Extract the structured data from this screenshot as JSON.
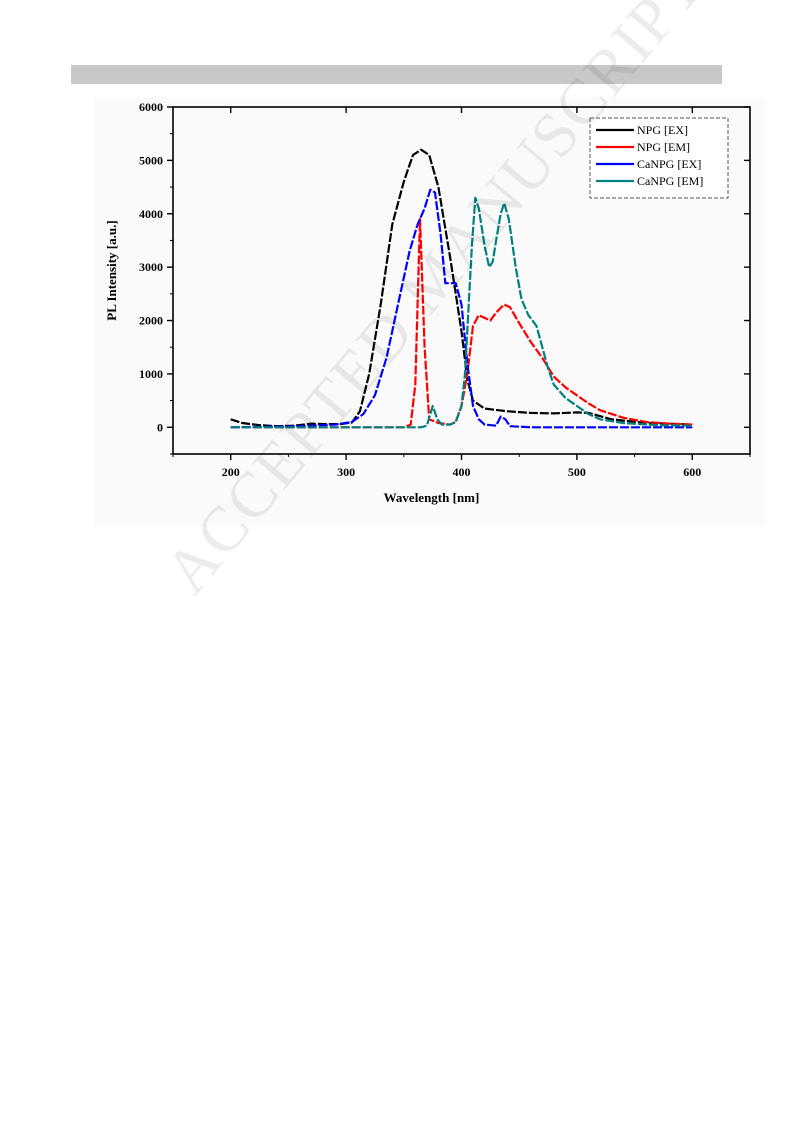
{
  "watermark": "ACCEPTED MANUSCRIPT",
  "chart_data": {
    "type": "line",
    "title": "",
    "xlabel": "Wavelength [nm]",
    "ylabel": "PL Intensity [a.u.]",
    "xlim": [
      150,
      650
    ],
    "ylim": [
      -500,
      6000
    ],
    "xticks": [
      200,
      300,
      400,
      500,
      600
    ],
    "yticks": [
      0,
      1000,
      2000,
      3000,
      4000,
      5000,
      6000
    ],
    "grid": false,
    "legend_position": "top-right",
    "series": [
      {
        "name": "NPG [EX]",
        "color": "#000000",
        "points": [
          [
            200,
            150
          ],
          [
            210,
            80
          ],
          [
            225,
            40
          ],
          [
            240,
            20
          ],
          [
            255,
            30
          ],
          [
            270,
            70
          ],
          [
            280,
            60
          ],
          [
            295,
            60
          ],
          [
            305,
            90
          ],
          [
            312,
            300
          ],
          [
            320,
            1000
          ],
          [
            330,
            2300
          ],
          [
            340,
            3800
          ],
          [
            350,
            4600
          ],
          [
            358,
            5100
          ],
          [
            365,
            5200
          ],
          [
            372,
            5100
          ],
          [
            380,
            4500
          ],
          [
            390,
            3200
          ],
          [
            400,
            1800
          ],
          [
            405,
            900
          ],
          [
            410,
            500
          ],
          [
            420,
            350
          ],
          [
            440,
            300
          ],
          [
            460,
            270
          ],
          [
            480,
            260
          ],
          [
            500,
            280
          ],
          [
            510,
            270
          ],
          [
            530,
            150
          ],
          [
            560,
            80
          ],
          [
            600,
            50
          ]
        ]
      },
      {
        "name": "NPG [EM]",
        "color": "#ff0000",
        "points": [
          [
            200,
            0
          ],
          [
            350,
            0
          ],
          [
            356,
            50
          ],
          [
            360,
            800
          ],
          [
            364,
            3900
          ],
          [
            368,
            1500
          ],
          [
            372,
            150
          ],
          [
            380,
            80
          ],
          [
            390,
            50
          ],
          [
            395,
            100
          ],
          [
            400,
            400
          ],
          [
            405,
            1000
          ],
          [
            410,
            1900
          ],
          [
            415,
            2100
          ],
          [
            420,
            2050
          ],
          [
            425,
            2000
          ],
          [
            430,
            2150
          ],
          [
            437,
            2300
          ],
          [
            442,
            2250
          ],
          [
            450,
            1950
          ],
          [
            460,
            1600
          ],
          [
            470,
            1300
          ],
          [
            480,
            950
          ],
          [
            490,
            750
          ],
          [
            500,
            600
          ],
          [
            510,
            450
          ],
          [
            520,
            320
          ],
          [
            540,
            180
          ],
          [
            560,
            100
          ],
          [
            580,
            70
          ],
          [
            600,
            50
          ]
        ]
      },
      {
        "name": "CaNPG [EX]",
        "color": "#0000ff",
        "points": [
          [
            200,
            0
          ],
          [
            230,
            10
          ],
          [
            260,
            20
          ],
          [
            290,
            50
          ],
          [
            305,
            100
          ],
          [
            315,
            250
          ],
          [
            325,
            600
          ],
          [
            335,
            1300
          ],
          [
            345,
            2300
          ],
          [
            355,
            3300
          ],
          [
            362,
            3800
          ],
          [
            368,
            4100
          ],
          [
            373,
            4450
          ],
          [
            377,
            4400
          ],
          [
            382,
            3600
          ],
          [
            386,
            2700
          ],
          [
            390,
            2700
          ],
          [
            395,
            2700
          ],
          [
            400,
            2300
          ],
          [
            405,
            1200
          ],
          [
            410,
            400
          ],
          [
            415,
            150
          ],
          [
            420,
            50
          ],
          [
            430,
            30
          ],
          [
            434,
            200
          ],
          [
            438,
            150
          ],
          [
            442,
            20
          ],
          [
            460,
            0
          ],
          [
            500,
            0
          ],
          [
            550,
            0
          ],
          [
            600,
            0
          ]
        ]
      },
      {
        "name": "CaNPG [EM]",
        "color": "#008080",
        "points": [
          [
            200,
            0
          ],
          [
            350,
            0
          ],
          [
            365,
            0
          ],
          [
            370,
            30
          ],
          [
            375,
            400
          ],
          [
            379,
            150
          ],
          [
            383,
            50
          ],
          [
            390,
            50
          ],
          [
            395,
            100
          ],
          [
            400,
            400
          ],
          [
            403,
            1000
          ],
          [
            406,
            2200
          ],
          [
            409,
            3400
          ],
          [
            412,
            4300
          ],
          [
            415,
            4100
          ],
          [
            420,
            3400
          ],
          [
            424,
            3000
          ],
          [
            427,
            3100
          ],
          [
            430,
            3500
          ],
          [
            434,
            4000
          ],
          [
            437,
            4200
          ],
          [
            441,
            3900
          ],
          [
            447,
            3000
          ],
          [
            452,
            2400
          ],
          [
            458,
            2100
          ],
          [
            465,
            1900
          ],
          [
            470,
            1500
          ],
          [
            475,
            1100
          ],
          [
            480,
            800
          ],
          [
            490,
            550
          ],
          [
            500,
            400
          ],
          [
            510,
            250
          ],
          [
            520,
            150
          ],
          [
            540,
            80
          ],
          [
            570,
            40
          ],
          [
            600,
            30
          ]
        ]
      }
    ]
  }
}
